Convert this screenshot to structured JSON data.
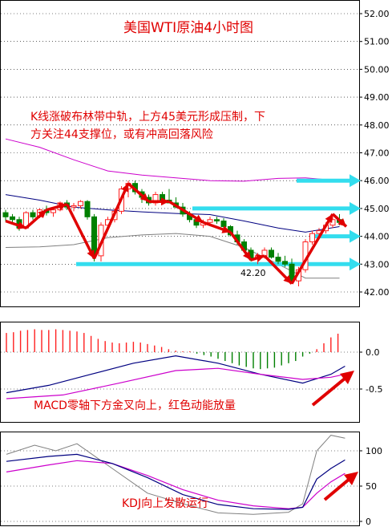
{
  "title": "美国WTI原油4小时图",
  "annotations": {
    "kline_line1": "K线涨破布林带中轨，上方45美元形成压制，下",
    "kline_line2": "方关注44支撑位，或有冲高回落风险",
    "macd": "MACD零轴下方金叉向上，红色动能放量",
    "kdj": "KDJ向上发散运行",
    "low_price_label": "42.20"
  },
  "colors": {
    "up_candle": "#ff2020",
    "down_candle": "#008000",
    "upper_band": "#cc00cc",
    "middle_band": "#000080",
    "lower_band": "#808080",
    "arrows": "#e00000",
    "levels": "#33ddee",
    "dif": "#000080",
    "dea": "#cc00cc",
    "k": "#000080",
    "d": "#cc00cc",
    "j": "#808080"
  },
  "chart_data": [
    {
      "type": "candlestick",
      "panel": "price",
      "title": "美国WTI原油4小时图",
      "ylim": [
        41.6,
        52.4
      ],
      "yticks": [
        "52.00",
        "51.00",
        "50.00",
        "49.00",
        "48.00",
        "47.00",
        "46.00",
        "45.00",
        "44.00",
        "43.00",
        "42.00"
      ],
      "candles": [
        [
          44.85,
          44.95,
          44.55,
          44.7
        ],
        [
          44.7,
          44.8,
          44.5,
          44.6
        ],
        [
          44.6,
          44.7,
          44.2,
          44.3
        ],
        [
          44.3,
          44.9,
          44.25,
          44.85
        ],
        [
          44.85,
          44.95,
          44.6,
          44.7
        ],
        [
          44.7,
          45.0,
          44.65,
          44.95
        ],
        [
          44.95,
          45.1,
          44.75,
          44.85
        ],
        [
          44.85,
          45.0,
          44.7,
          44.95
        ],
        [
          44.95,
          45.25,
          44.9,
          45.2
        ],
        [
          45.2,
          45.3,
          44.95,
          45.05
        ],
        [
          45.05,
          45.2,
          44.9,
          45.1
        ],
        [
          45.1,
          45.3,
          45.0,
          45.25
        ],
        [
          45.25,
          45.3,
          44.6,
          44.7
        ],
        [
          44.7,
          44.8,
          43.1,
          43.3
        ],
        [
          43.3,
          44.5,
          43.1,
          44.4
        ],
        [
          44.4,
          44.7,
          44.2,
          44.6
        ],
        [
          44.6,
          45.0,
          44.5,
          44.9
        ],
        [
          44.9,
          45.8,
          44.8,
          45.7
        ],
        [
          45.7,
          46.0,
          45.4,
          45.9
        ],
        [
          45.9,
          46.0,
          45.5,
          45.6
        ],
        [
          45.6,
          45.7,
          45.2,
          45.4
        ],
        [
          45.4,
          45.5,
          45.1,
          45.2
        ],
        [
          45.2,
          45.6,
          45.1,
          45.5
        ],
        [
          45.5,
          45.6,
          45.2,
          45.3
        ],
        [
          45.3,
          45.7,
          45.2,
          45.2
        ],
        [
          45.2,
          45.4,
          45.0,
          45.05
        ],
        [
          45.05,
          45.2,
          44.7,
          44.8
        ],
        [
          44.8,
          44.9,
          44.5,
          44.6
        ],
        [
          44.6,
          44.7,
          44.3,
          44.4
        ],
        [
          44.4,
          44.6,
          44.3,
          44.5
        ],
        [
          44.5,
          44.7,
          44.4,
          44.6
        ],
        [
          44.6,
          44.7,
          44.45,
          44.55
        ],
        [
          44.55,
          44.65,
          44.3,
          44.35
        ],
        [
          44.35,
          44.4,
          44.0,
          44.05
        ],
        [
          44.05,
          44.2,
          43.7,
          43.8
        ],
        [
          43.8,
          43.9,
          43.4,
          43.5
        ],
        [
          43.5,
          43.6,
          43.1,
          43.2
        ],
        [
          43.2,
          43.4,
          43.0,
          43.3
        ],
        [
          43.3,
          43.6,
          43.2,
          43.5
        ],
        [
          43.5,
          43.6,
          43.2,
          43.25
        ],
        [
          43.25,
          43.4,
          43.0,
          43.1
        ],
        [
          43.1,
          43.3,
          42.9,
          43.0
        ],
        [
          43.0,
          43.2,
          42.3,
          42.4
        ],
        [
          42.4,
          42.9,
          42.2,
          42.8
        ],
        [
          42.8,
          43.9,
          42.7,
          43.8
        ],
        [
          43.8,
          44.2,
          43.7,
          44.1
        ],
        [
          44.1,
          44.3,
          43.9,
          44.2
        ],
        [
          44.2,
          44.5,
          44.1,
          44.4
        ],
        [
          44.4,
          44.7,
          44.3,
          44.6
        ],
        [
          44.6,
          44.8,
          44.4,
          44.5
        ]
      ],
      "bollinger_upper": [
        [
          0,
          47.5
        ],
        [
          5,
          47.2
        ],
        [
          10,
          46.75
        ],
        [
          15,
          46.35
        ],
        [
          20,
          46.2
        ],
        [
          25,
          46.1
        ],
        [
          30,
          46.0
        ],
        [
          35,
          45.98
        ],
        [
          40,
          46.08
        ],
        [
          44,
          46.1
        ],
        [
          49,
          46.0
        ]
      ],
      "bollinger_middle": [
        [
          0,
          45.5
        ],
        [
          5,
          45.3
        ],
        [
          10,
          45.05
        ],
        [
          15,
          44.95
        ],
        [
          20,
          44.88
        ],
        [
          25,
          44.82
        ],
        [
          30,
          44.78
        ],
        [
          35,
          44.55
        ],
        [
          40,
          44.3
        ],
        [
          44,
          44.15
        ],
        [
          49,
          44.35
        ]
      ],
      "bollinger_lower": [
        [
          0,
          43.6
        ],
        [
          5,
          43.62
        ],
        [
          10,
          43.7
        ],
        [
          15,
          43.95
        ],
        [
          20,
          44.05
        ],
        [
          25,
          44.1
        ],
        [
          30,
          44.0
        ],
        [
          35,
          43.6
        ],
        [
          40,
          43.0
        ],
        [
          44,
          42.5
        ],
        [
          49,
          42.5
        ]
      ],
      "level_lines": [
        46.0,
        45.0,
        44.0,
        43.0
      ],
      "low_label": {
        "candle": 42,
        "value": 42.2
      }
    },
    {
      "type": "bar",
      "panel": "macd",
      "title": "MACD零轴下方金叉向上，红色动能放量",
      "ylim": [
        -0.65,
        0.35
      ],
      "yticks": [
        "0.0",
        "-0.5"
      ],
      "histogram": [
        0.26,
        0.27,
        0.29,
        0.3,
        0.31,
        0.3,
        0.3,
        0.31,
        0.3,
        0.29,
        0.28,
        0.26,
        0.22,
        0.18,
        0.15,
        0.13,
        0.12,
        0.13,
        0.14,
        0.13,
        0.11,
        0.09,
        0.07,
        0.04,
        0.02,
        0.01,
        0.01,
        -0.02,
        -0.04,
        -0.06,
        -0.09,
        -0.12,
        -0.15,
        -0.18,
        -0.2,
        -0.22,
        -0.23,
        -0.22,
        -0.21,
        -0.18,
        -0.15,
        -0.12,
        -0.06,
        -0.02,
        0.04,
        0.12,
        0.2,
        0.25
      ],
      "dif": [
        [
          0,
          -0.55
        ],
        [
          6,
          -0.45
        ],
        [
          12,
          -0.3
        ],
        [
          18,
          -0.15
        ],
        [
          24,
          -0.05
        ],
        [
          30,
          -0.15
        ],
        [
          36,
          -0.3
        ],
        [
          42,
          -0.42
        ],
        [
          46,
          -0.3
        ],
        [
          48,
          -0.19
        ]
      ],
      "dea": [
        [
          0,
          -0.63
        ],
        [
          8,
          -0.58
        ],
        [
          16,
          -0.42
        ],
        [
          24,
          -0.25
        ],
        [
          30,
          -0.22
        ],
        [
          36,
          -0.3
        ],
        [
          42,
          -0.37
        ],
        [
          46,
          -0.34
        ],
        [
          48,
          -0.3
        ]
      ]
    },
    {
      "type": "line",
      "panel": "kdj",
      "title": "KDJ向上发散运行",
      "ylim": [
        -2,
        124
      ],
      "yticks": [
        "100",
        "50",
        "0"
      ],
      "k": [
        [
          0,
          85
        ],
        [
          6,
          92
        ],
        [
          10,
          95
        ],
        [
          15,
          82
        ],
        [
          20,
          62
        ],
        [
          25,
          38
        ],
        [
          30,
          24
        ],
        [
          35,
          18
        ],
        [
          40,
          17
        ],
        [
          42,
          20
        ],
        [
          44,
          60
        ],
        [
          46,
          75
        ],
        [
          48,
          87
        ]
      ],
      "d": [
        [
          0,
          70
        ],
        [
          6,
          80
        ],
        [
          10,
          86
        ],
        [
          15,
          82
        ],
        [
          20,
          65
        ],
        [
          25,
          45
        ],
        [
          30,
          30
        ],
        [
          35,
          22
        ],
        [
          40,
          18
        ],
        [
          42,
          20
        ],
        [
          44,
          40
        ],
        [
          46,
          56
        ],
        [
          48,
          68
        ]
      ],
      "j": [
        [
          0,
          95
        ],
        [
          4,
          108
        ],
        [
          7,
          100
        ],
        [
          10,
          110
        ],
        [
          15,
          75
        ],
        [
          20,
          40
        ],
        [
          25,
          25
        ],
        [
          30,
          12
        ],
        [
          35,
          10
        ],
        [
          40,
          13
        ],
        [
          42,
          25
        ],
        [
          44,
          100
        ],
        [
          46,
          122
        ],
        [
          48,
          118
        ]
      ]
    }
  ]
}
